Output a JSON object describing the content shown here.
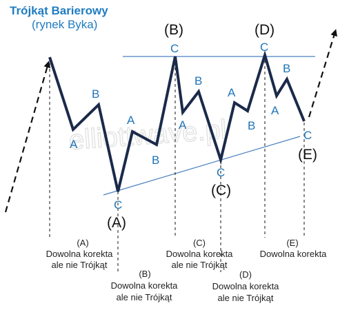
{
  "title": "Trójkąt Barierowy",
  "subtitle": "(rynek Byka)",
  "watermark": "elliottwave.pl",
  "major_labels": {
    "A": "(A)",
    "B": "(B)",
    "C": "(C)",
    "D": "(D)",
    "E": "(E)"
  },
  "wave_labels": {
    "a": "A",
    "b": "B",
    "c": "C"
  },
  "notes": {
    "a": {
      "marker": "(A)",
      "line1": "Dowolna korekta",
      "line2": "ale nie Trójkąt"
    },
    "b": {
      "marker": "(B)",
      "line1": "Dowolna korekta",
      "line2": "ale nie Trójkąt"
    },
    "c": {
      "marker": "(C)",
      "line1": "Dowolna korekta",
      "line2": "ale nie Trójkąt"
    },
    "d": {
      "marker": "(D)",
      "line1": "Dowolna korekta",
      "line2": "ale nie Trójkąt"
    },
    "e": {
      "marker": "(E)",
      "line1": "Dowolna korekta"
    }
  },
  "colors": {
    "wave": "#1b2a4a",
    "label": "#1f74b8",
    "trendline": "#4a7fc0",
    "dashed": "#111111"
  }
}
